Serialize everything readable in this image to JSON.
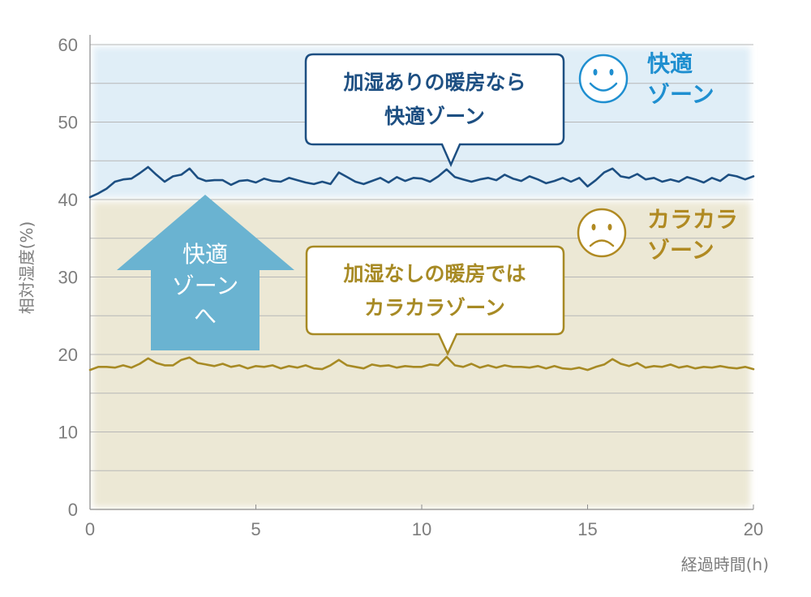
{
  "chart_data": {
    "type": "line",
    "xlabel": "経過時間(h)",
    "ylabel": "相対湿度(%)",
    "xlim": [
      0,
      20
    ],
    "ylim": [
      0,
      60
    ],
    "x_ticks": [
      "0",
      "5",
      "10",
      "15",
      "20"
    ],
    "y_ticks": [
      "0",
      "10",
      "20",
      "30",
      "40",
      "50",
      "60"
    ],
    "grid": true,
    "x": [
      0,
      0.25,
      0.5,
      0.75,
      1,
      1.25,
      1.5,
      1.75,
      2,
      2.25,
      2.5,
      2.75,
      3,
      3.25,
      3.5,
      3.75,
      4,
      4.25,
      4.5,
      4.75,
      5,
      5.25,
      5.5,
      5.75,
      6,
      6.25,
      6.5,
      6.75,
      7,
      7.25,
      7.5,
      7.75,
      8,
      8.25,
      8.5,
      8.75,
      9,
      9.25,
      9.5,
      9.75,
      10,
      10.25,
      10.5,
      10.75,
      11,
      11.25,
      11.5,
      11.75,
      12,
      12.25,
      12.5,
      12.75,
      13,
      13.25,
      13.5,
      13.75,
      14,
      14.25,
      14.5,
      14.75,
      15,
      15.25,
      15.5,
      15.75,
      16,
      16.25,
      16.5,
      16.75,
      17,
      17.25,
      17.5,
      17.75,
      18,
      18.25,
      18.5,
      18.75,
      19,
      19.25,
      19.5,
      19.75,
      20
    ],
    "series": [
      {
        "key": "with_humidifier",
        "color": "#1d4f82",
        "values": [
          40.3,
          40.8,
          41.4,
          42.3,
          42.6,
          42.7,
          43.4,
          44.2,
          43.2,
          42.3,
          43.0,
          43.2,
          44.0,
          42.8,
          42.4,
          42.5,
          42.5,
          41.9,
          42.4,
          42.5,
          42.2,
          42.7,
          42.4,
          42.3,
          42.8,
          42.5,
          42.2,
          42.0,
          42.3,
          42.0,
          43.5,
          42.9,
          42.3,
          42.0,
          42.4,
          42.8,
          42.2,
          42.9,
          42.4,
          42.8,
          42.7,
          42.3,
          43.0,
          43.9,
          42.9,
          42.6,
          42.3,
          42.6,
          42.8,
          42.5,
          43.2,
          42.7,
          42.4,
          43.0,
          42.6,
          42.1,
          42.4,
          42.8,
          42.3,
          42.8,
          41.7,
          42.5,
          43.5,
          44.0,
          43.0,
          42.8,
          43.3,
          42.6,
          42.8,
          42.3,
          42.6,
          42.3,
          42.9,
          42.6,
          42.2,
          42.8,
          42.4,
          43.2,
          43.0,
          42.6,
          43.0
        ]
      },
      {
        "key": "without_humidifier",
        "color": "#a78a24",
        "values": [
          18.0,
          18.4,
          18.4,
          18.3,
          18.6,
          18.3,
          18.8,
          19.5,
          18.9,
          18.6,
          18.6,
          19.3,
          19.6,
          18.9,
          18.7,
          18.5,
          18.8,
          18.4,
          18.6,
          18.2,
          18.5,
          18.4,
          18.6,
          18.2,
          18.5,
          18.3,
          18.6,
          18.2,
          18.1,
          18.6,
          19.3,
          18.6,
          18.4,
          18.2,
          18.7,
          18.5,
          18.6,
          18.3,
          18.5,
          18.4,
          18.4,
          18.7,
          18.6,
          19.7,
          18.6,
          18.4,
          18.8,
          18.3,
          18.6,
          18.3,
          18.6,
          18.4,
          18.4,
          18.3,
          18.5,
          18.2,
          18.5,
          18.2,
          18.1,
          18.3,
          18.0,
          18.4,
          18.7,
          19.4,
          18.8,
          18.5,
          18.9,
          18.3,
          18.5,
          18.4,
          18.7,
          18.3,
          18.5,
          18.2,
          18.4,
          18.3,
          18.5,
          18.3,
          18.2,
          18.4,
          18.1
        ]
      }
    ],
    "zones": [
      {
        "key": "comfort",
        "from": 40,
        "to": 60,
        "color": "#e0eef7"
      },
      {
        "key": "dry",
        "from": 0,
        "to": 40,
        "color": "#ece8d5"
      }
    ],
    "annotations": {
      "comfort_callout": [
        "加湿ありの暖房なら",
        "快適ゾーン"
      ],
      "dry_callout": [
        "加湿なしの暖房では",
        "カラカラゾーン"
      ],
      "comfort_zone_label": [
        "快適",
        "ゾーン"
      ],
      "dry_zone_label": [
        "カラカラ",
        "ゾーン"
      ],
      "arrow_label": [
        "快適",
        "ゾーンへ",
        "へ"
      ],
      "comfort_color": "#1d4f82",
      "dry_color": "#a78a24",
      "comfort_zone_text_color": "#1f8fd0",
      "dry_zone_text_color": "#b08a22",
      "arrow_color": "#6ab3d1"
    }
  }
}
